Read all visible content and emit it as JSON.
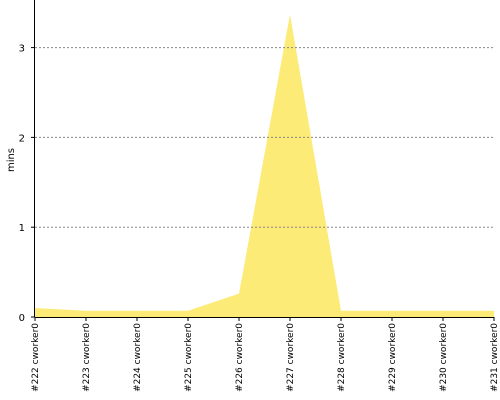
{
  "chart_data": {
    "type": "area",
    "y_label": "mins",
    "categories": [
      "#222 cworker0",
      "#223 cworker0",
      "#224 cworker0",
      "#225 cworker0",
      "#226 cworker0",
      "#227 cworker0",
      "#228 cworker0",
      "#229 cworker0",
      "#230 cworker0",
      "#231 cworker0"
    ],
    "values": [
      0.1,
      0.07,
      0.07,
      0.07,
      0.26,
      3.37,
      0.07,
      0.07,
      0.07,
      0.07
    ],
    "color": "#fdeb77",
    "ylim": [
      0,
      3.53
    ],
    "yticks": [
      0,
      1,
      2,
      3
    ],
    "grid": true
  }
}
